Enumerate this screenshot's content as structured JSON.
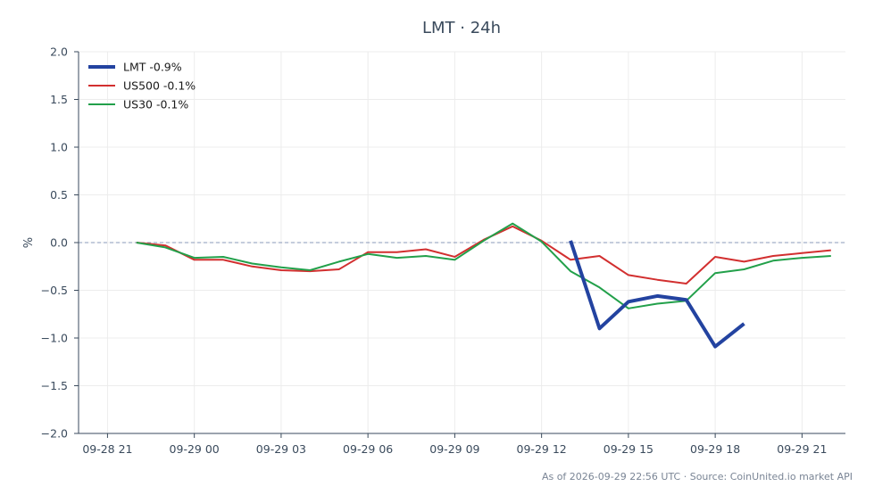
{
  "chart_data": {
    "type": "line",
    "title": "LMT · 24h",
    "xlabel": "",
    "ylabel": "%",
    "ylim": [
      -2.0,
      2.0
    ],
    "xlim": [
      -1.0,
      25.5
    ],
    "x_unit": "hours after 09-28 21:00",
    "yticks": [
      "2.0",
      "1.5",
      "1.0",
      "0.5",
      "0.0",
      "−0.5",
      "−1.0",
      "−1.5",
      "−2.0"
    ],
    "xticks": [
      {
        "x": 0,
        "label": "09-28 21"
      },
      {
        "x": 3,
        "label": "09-29 00"
      },
      {
        "x": 6,
        "label": "09-29 03"
      },
      {
        "x": 9,
        "label": "09-29 06"
      },
      {
        "x": 12,
        "label": "09-29 09"
      },
      {
        "x": 15,
        "label": "09-29 12"
      },
      {
        "x": 18,
        "label": "09-29 15"
      },
      {
        "x": 21,
        "label": "09-29 18"
      },
      {
        "x": 24,
        "label": "09-29 21"
      }
    ],
    "baseline": 0.0,
    "grid": true,
    "legend_position": "top-left",
    "series": [
      {
        "name": "LMT -0.9%",
        "color": "#2343a0",
        "emphasis": true,
        "x": [
          16,
          17,
          18,
          19,
          20,
          21,
          22
        ],
        "y": [
          0.02,
          -0.9,
          -0.62,
          -0.56,
          -0.6,
          -1.09,
          -0.85
        ]
      },
      {
        "name": "US500 -0.1%",
        "color": "#d22f2f",
        "emphasis": false,
        "x": [
          1,
          2,
          3,
          4,
          5,
          6,
          7,
          8,
          9,
          10,
          11,
          12,
          13,
          14,
          15,
          16,
          17,
          18,
          19,
          20,
          21,
          22,
          23,
          24,
          25
        ],
        "y": [
          0.0,
          -0.03,
          -0.18,
          -0.18,
          -0.25,
          -0.29,
          -0.3,
          -0.28,
          -0.1,
          -0.1,
          -0.07,
          -0.15,
          0.03,
          0.17,
          0.02,
          -0.18,
          -0.14,
          -0.34,
          -0.39,
          -0.43,
          -0.15,
          -0.2,
          -0.14,
          -0.11,
          -0.08
        ]
      },
      {
        "name": "US30 -0.1%",
        "color": "#22a04a",
        "emphasis": false,
        "x": [
          1,
          2,
          3,
          4,
          5,
          6,
          7,
          8,
          9,
          10,
          11,
          12,
          13,
          14,
          15,
          16,
          17,
          18,
          19,
          20,
          21,
          22,
          23,
          24,
          25
        ],
        "y": [
          0.0,
          -0.05,
          -0.16,
          -0.15,
          -0.22,
          -0.26,
          -0.29,
          -0.2,
          -0.12,
          -0.16,
          -0.14,
          -0.18,
          0.02,
          0.2,
          0.01,
          -0.3,
          -0.47,
          -0.69,
          -0.64,
          -0.61,
          -0.32,
          -0.28,
          -0.19,
          -0.16,
          -0.14
        ]
      }
    ]
  },
  "footer": "As of 2026-09-29 22:56 UTC · Source: CoinUnited.io market API"
}
